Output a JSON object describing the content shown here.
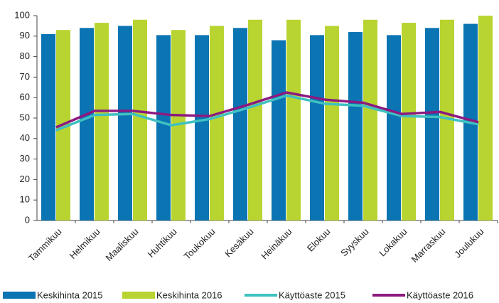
{
  "chart_data": {
    "type": "bar_line",
    "categories": [
      "Tammikuu",
      "Helmikuu",
      "Maaliskuu",
      "Huhtikuu",
      "Toukokuu",
      "Kesäkuu",
      "Heinäkuu",
      "Elokuu",
      "Syyskuu",
      "Lokakuu",
      "Marraskuu",
      "Joulukuu"
    ],
    "series": [
      {
        "name": "Keskihinta 2015",
        "color": "#0b74b3",
        "kind": "bar",
        "values": [
          91,
          94,
          95,
          90.5,
          90.5,
          94,
          88,
          90.5,
          92,
          90.5,
          94,
          96
        ]
      },
      {
        "name": "Keskihinta 2016",
        "color": "#b8d431",
        "kind": "bar",
        "values": [
          93,
          96.5,
          98,
          93,
          95,
          98,
          98,
          95,
          98,
          96.5,
          98,
          100
        ]
      },
      {
        "name": "Käyttöaste 2015",
        "color": "#3fc1c1",
        "kind": "line",
        "values": [
          44,
          51.5,
          52,
          46.5,
          49.5,
          55,
          61,
          57,
          56,
          51,
          50.5,
          47
        ]
      },
      {
        "name": "Käyttöaste 2016",
        "color": "#8c1a80",
        "kind": "line",
        "values": [
          45.5,
          53.5,
          53.5,
          51.5,
          51,
          56.5,
          62.5,
          59,
          57.5,
          52,
          53,
          48
        ]
      }
    ],
    "ylim": [
      0,
      100
    ],
    "yticks": [
      0,
      10,
      20,
      30,
      40,
      50,
      60,
      70,
      80,
      90,
      100
    ],
    "grid": false,
    "legend": "bottom"
  }
}
